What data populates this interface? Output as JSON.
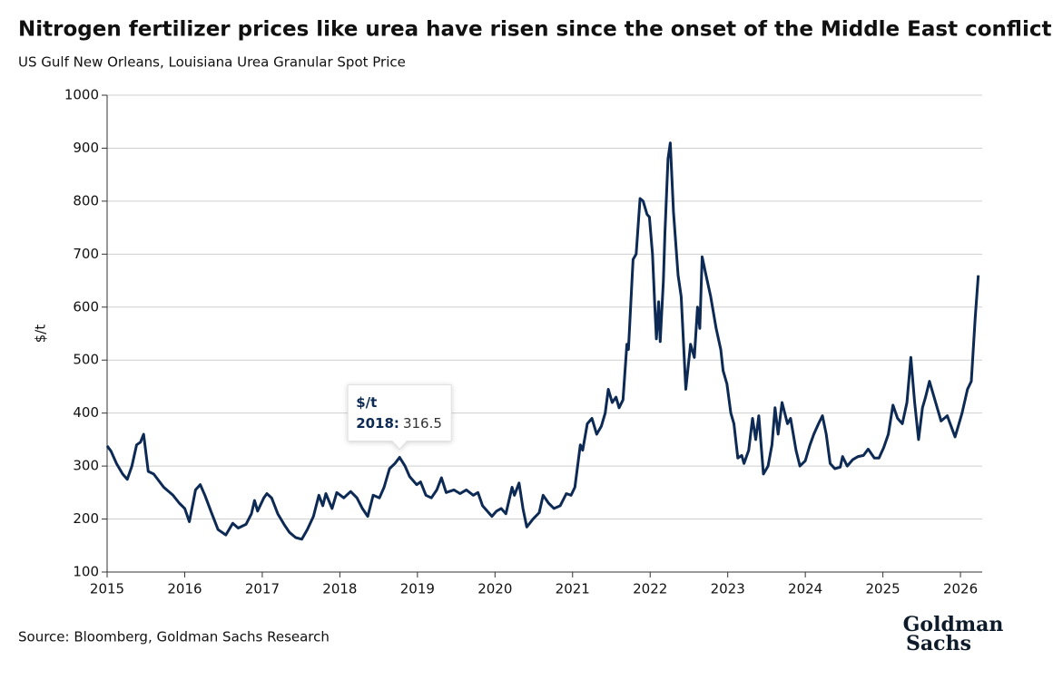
{
  "chart_data": {
    "type": "line",
    "title": "Nitrogen fertilizer prices like urea have risen since the onset of the Middle East conflict",
    "subtitle": "US Gulf New Orleans, Louisiana Urea Granular Spot Price",
    "y_label": "$/t",
    "source": "Source: Bloomberg, Goldman Sachs Research",
    "logo": [
      "Goldman",
      "Sachs"
    ],
    "xlim": [
      2015,
      2026.28
    ],
    "xticks": [
      2015,
      2016,
      2017,
      2018,
      2019,
      2020,
      2021,
      2022,
      2023,
      2024,
      2025,
      2026
    ],
    "ylim": [
      100,
      1000
    ],
    "yticks": [
      100,
      200,
      300,
      400,
      500,
      600,
      700,
      800,
      900,
      1000
    ],
    "grid": true,
    "tooltip": {
      "label": "2018:",
      "value": 316.5
    },
    "series": [
      {
        "name": "$/t",
        "color": "#0d2a55",
        "x": [
          2015.0,
          2015.05,
          2015.12,
          2015.2,
          2015.26,
          2015.32,
          2015.38,
          2015.43,
          2015.47,
          2015.53,
          2015.6,
          2015.73,
          2015.85,
          2015.93,
          2016.0,
          2016.06,
          2016.14,
          2016.2,
          2016.26,
          2016.35,
          2016.43,
          2016.53,
          2016.62,
          2016.69,
          2016.79,
          2016.86,
          2016.9,
          2016.94,
          2017.02,
          2017.06,
          2017.12,
          2017.2,
          2017.28,
          2017.35,
          2017.43,
          2017.51,
          2017.58,
          2017.66,
          2017.73,
          2017.78,
          2017.82,
          2017.9,
          2017.96,
          2018.05,
          2018.14,
          2018.22,
          2018.29,
          2018.36,
          2018.43,
          2018.51,
          2018.57,
          2018.64,
          2018.71,
          2018.77,
          2018.84,
          2018.9,
          2018.99,
          2019.04,
          2019.11,
          2019.18,
          2019.25,
          2019.31,
          2019.37,
          2019.47,
          2019.55,
          2019.63,
          2019.72,
          2019.78,
          2019.84,
          2019.96,
          2020.02,
          2020.08,
          2020.14,
          2020.22,
          2020.25,
          2020.31,
          2020.36,
          2020.41,
          2020.49,
          2020.57,
          2020.62,
          2020.69,
          2020.76,
          2020.84,
          2020.92,
          2020.98,
          2021.03,
          2021.1,
          2021.13,
          2021.19,
          2021.25,
          2021.31,
          2021.37,
          2021.42,
          2021.46,
          2021.51,
          2021.56,
          2021.6,
          2021.65,
          2021.7,
          2021.72,
          2021.78,
          2021.82,
          2021.87,
          2021.91,
          2021.96,
          2021.99,
          2022.03,
          2022.06,
          2022.08,
          2022.11,
          2022.13,
          2022.17,
          2022.19,
          2022.23,
          2022.26,
          2022.3,
          2022.36,
          2022.4,
          2022.46,
          2022.52,
          2022.57,
          2022.61,
          2022.64,
          2022.67,
          2022.72,
          2022.78,
          2022.85,
          2022.91,
          2022.94,
          2022.99,
          2023.04,
          2023.08,
          2023.13,
          2023.18,
          2023.21,
          2023.27,
          2023.32,
          2023.36,
          2023.4,
          2023.46,
          2023.52,
          2023.57,
          2023.61,
          2023.65,
          2023.7,
          2023.77,
          2023.81,
          2023.88,
          2023.93,
          2024.0,
          2024.06,
          2024.11,
          2024.17,
          2024.22,
          2024.27,
          2024.32,
          2024.38,
          2024.45,
          2024.48,
          2024.54,
          2024.61,
          2024.68,
          2024.75,
          2024.81,
          2024.89,
          2024.95,
          2025.01,
          2025.07,
          2025.13,
          2025.19,
          2025.25,
          2025.31,
          2025.36,
          2025.41,
          2025.46,
          2025.51,
          2025.55,
          2025.6,
          2025.66,
          2025.75,
          2025.83,
          2025.93,
          2025.98,
          2026.02,
          2026.09,
          2026.14,
          2026.19,
          2026.23
        ],
        "values": [
          338,
          328,
          305,
          285,
          275,
          300,
          340,
          345,
          360,
          290,
          285,
          260,
          245,
          230,
          220,
          195,
          255,
          265,
          245,
          210,
          180,
          170,
          192,
          183,
          190,
          210,
          235,
          215,
          240,
          248,
          240,
          210,
          190,
          175,
          165,
          162,
          180,
          205,
          245,
          225,
          248,
          220,
          250,
          240,
          252,
          240,
          220,
          205,
          245,
          240,
          260,
          295,
          305,
          316.5,
          300,
          280,
          265,
          270,
          245,
          240,
          255,
          278,
          250,
          255,
          248,
          255,
          245,
          250,
          225,
          205,
          215,
          220,
          210,
          260,
          245,
          268,
          220,
          185,
          200,
          212,
          245,
          230,
          220,
          225,
          248,
          245,
          260,
          340,
          330,
          380,
          390,
          360,
          375,
          400,
          445,
          420,
          430,
          410,
          425,
          530,
          520,
          690,
          700,
          805,
          800,
          775,
          770,
          700,
          600,
          540,
          610,
          535,
          650,
          740,
          880,
          910,
          780,
          660,
          620,
          445,
          530,
          505,
          600,
          560,
          695,
          660,
          620,
          560,
          520,
          480,
          455,
          400,
          380,
          315,
          320,
          305,
          330,
          390,
          350,
          395,
          285,
          300,
          340,
          410,
          360,
          420,
          380,
          390,
          330,
          300,
          310,
          340,
          360,
          380,
          395,
          360,
          305,
          295,
          298,
          318,
          300,
          312,
          318,
          320,
          332,
          315,
          315,
          335,
          360,
          415,
          390,
          380,
          420,
          505,
          420,
          350,
          410,
          430,
          460,
          430,
          385,
          395,
          355,
          380,
          400,
          445,
          460,
          580,
          660
        ]
      }
    ]
  }
}
